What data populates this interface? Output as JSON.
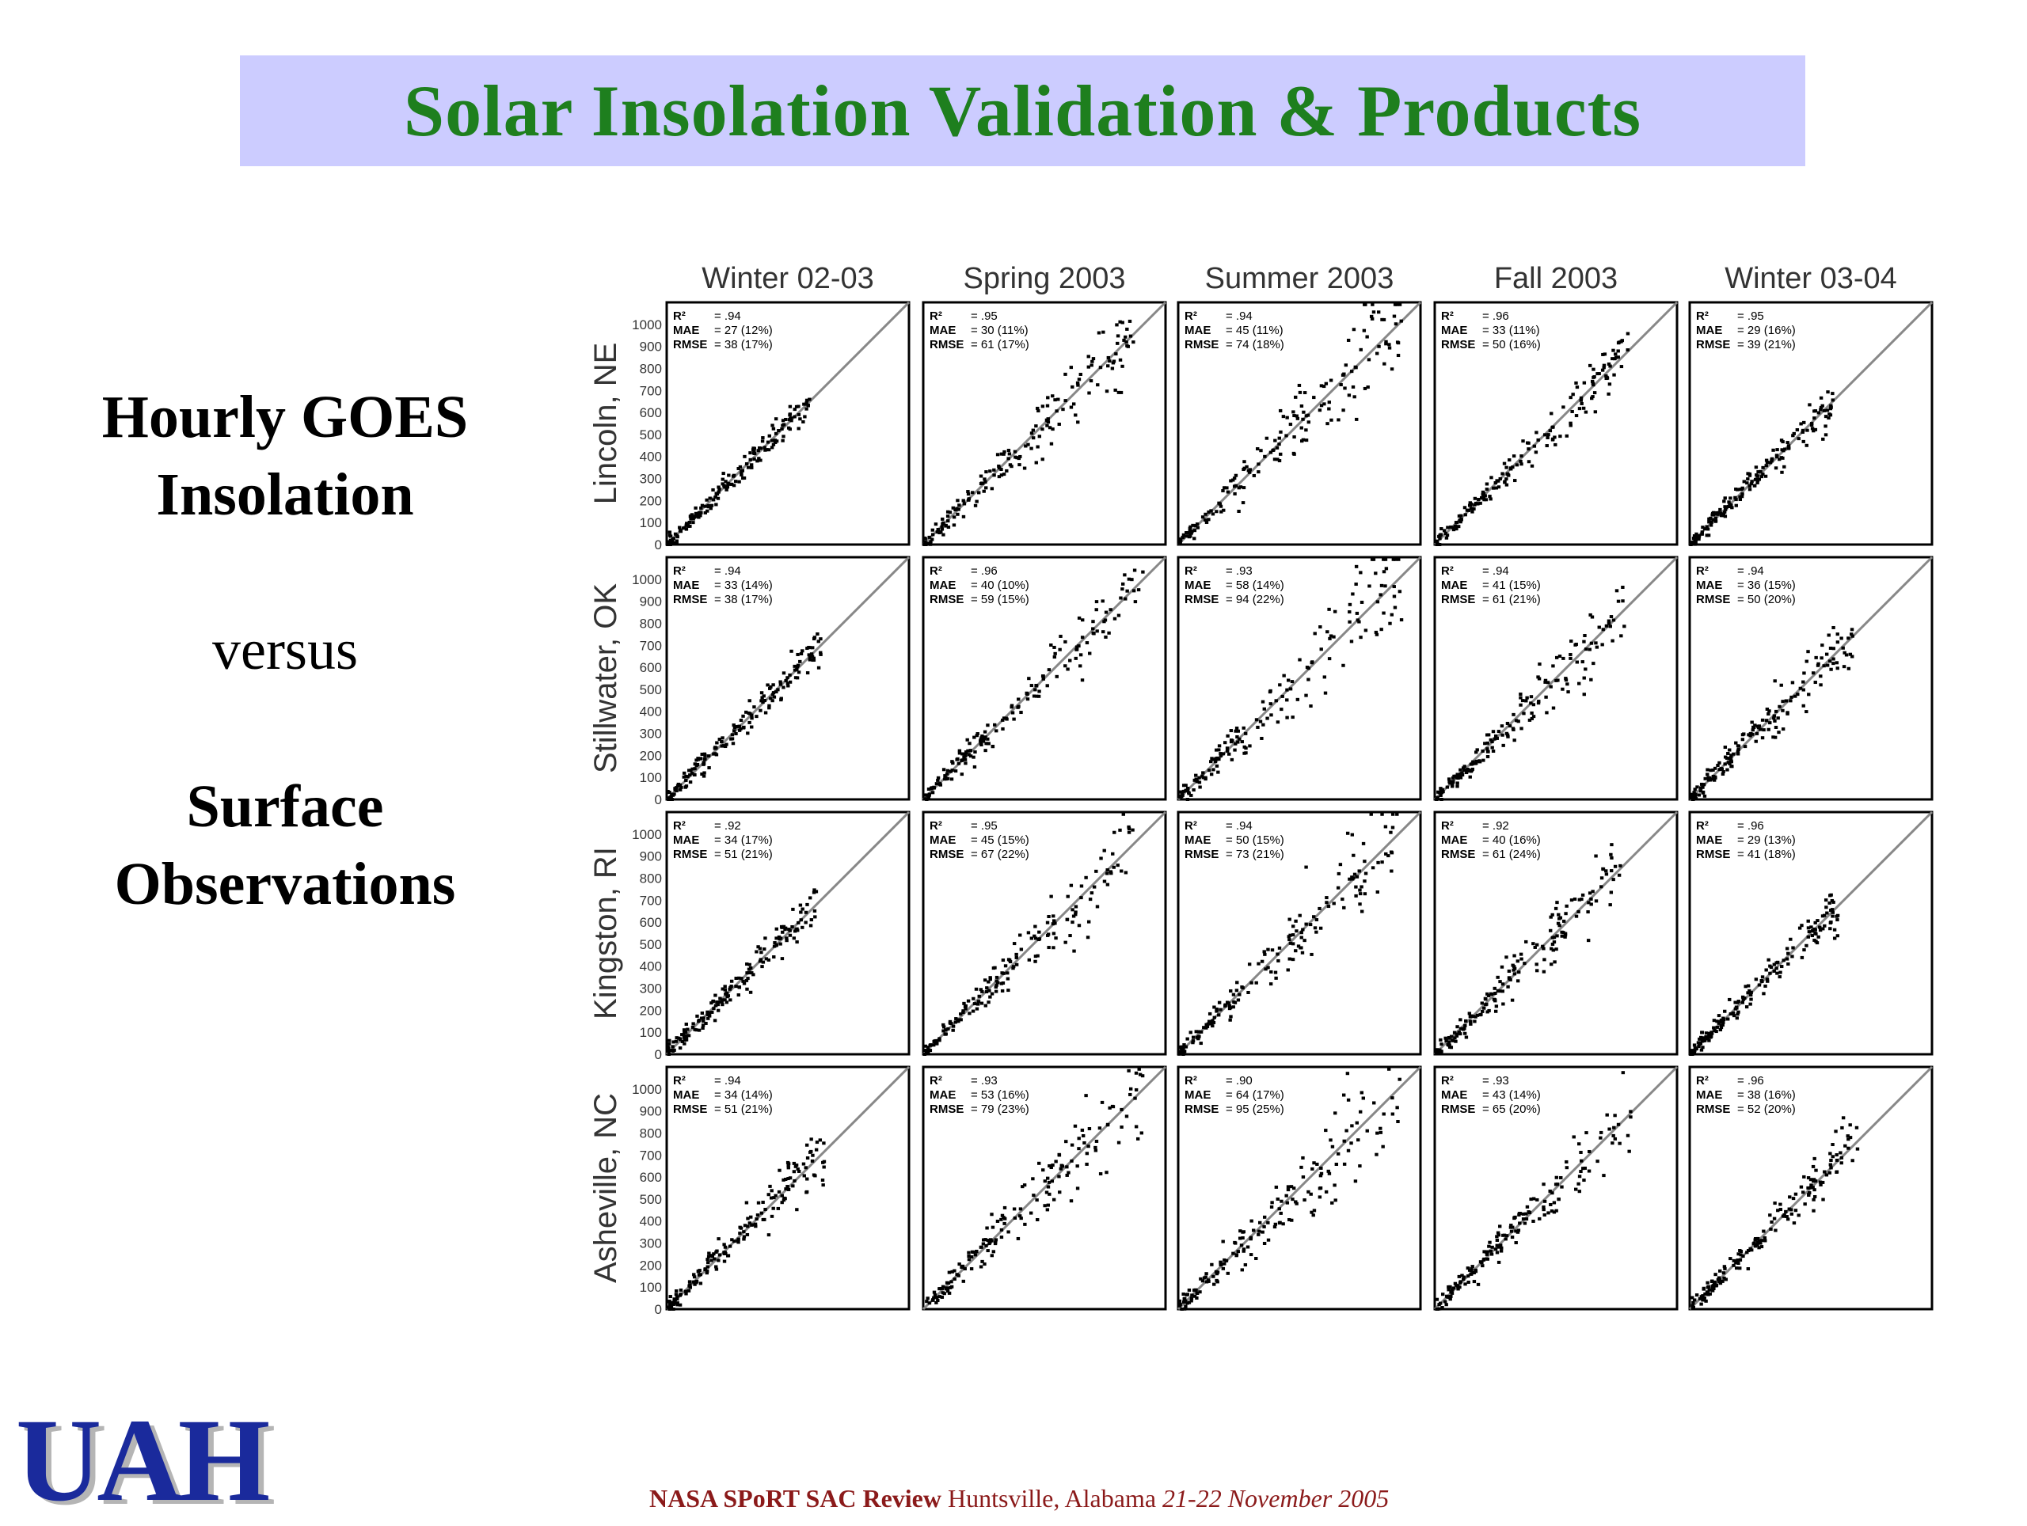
{
  "slide": {
    "title": "Solar Insolation Validation & Products",
    "left_text": {
      "line1": "Hourly GOES",
      "line2": "Insolation",
      "versus": "versus",
      "line3": "Surface",
      "line4": "Observations"
    },
    "logo": "UAH",
    "footer": {
      "part1": "NASA SPoRT SAC Review",
      "part2": " Huntsville, Alabama ",
      "part3": "21-22 November 2005"
    }
  },
  "colors": {
    "title_bg": "#ccccff",
    "title_text": "#1e7f1e",
    "footer_text": "#8b1a1a",
    "logo": "#1a2a9c"
  },
  "chart_data": {
    "type": "scatter",
    "columns": [
      "Winter 02-03",
      "Spring 2003",
      "Summer 2003",
      "Fall 2003",
      "Winter 03-04"
    ],
    "rows": [
      "Lincoln, NE",
      "Stillwater, OK",
      "Kingston, RI",
      "Asheville, NC"
    ],
    "y_ticks": [
      "1000",
      "900",
      "800",
      "700",
      "600",
      "500",
      "400",
      "300",
      "200",
      "100",
      "0"
    ],
    "xlim": [
      0,
      1100
    ],
    "ylim": [
      0,
      1100
    ],
    "reference_line": "1:1",
    "panels": [
      [
        {
          "r2": ".94",
          "mae": "27 (12%)",
          "rmse": "38 (17%)",
          "max": 650,
          "spread": 0.08
        },
        {
          "r2": ".95",
          "mae": "30 (11%)",
          "rmse": "61 (17%)",
          "max": 960,
          "spread": 0.14
        },
        {
          "r2": ".94",
          "mae": "45 (11%)",
          "rmse": "74 (18%)",
          "max": 1020,
          "spread": 0.18
        },
        {
          "r2": ".96",
          "mae": "33 (11%)",
          "rmse": "50 (16%)",
          "max": 880,
          "spread": 0.1
        },
        {
          "r2": ".95",
          "mae": "29 (16%)",
          "rmse": "39 (21%)",
          "max": 660,
          "spread": 0.1
        }
      ],
      [
        {
          "r2": ".94",
          "mae": "33 (14%)",
          "rmse": "38 (17%)",
          "max": 700,
          "spread": 0.1
        },
        {
          "r2": ".96",
          "mae": "40 (10%)",
          "rmse": "59 (15%)",
          "max": 1000,
          "spread": 0.14
        },
        {
          "r2": ".93",
          "mae": "58 (14%)",
          "rmse": "94 (22%)",
          "max": 1020,
          "spread": 0.2
        },
        {
          "r2": ".94",
          "mae": "41 (15%)",
          "rmse": "61 (21%)",
          "max": 870,
          "spread": 0.15
        },
        {
          "r2": ".94",
          "mae": "36 (15%)",
          "rmse": "50 (20%)",
          "max": 740,
          "spread": 0.15
        }
      ],
      [
        {
          "r2": ".92",
          "mae": "34 (17%)",
          "rmse": "51 (21%)",
          "max": 680,
          "spread": 0.12
        },
        {
          "r2": ".95",
          "mae": "45 (15%)",
          "rmse": "67 (22%)",
          "max": 960,
          "spread": 0.15
        },
        {
          "r2": ".94",
          "mae": "50 (15%)",
          "rmse": "73 (21%)",
          "max": 1010,
          "spread": 0.16
        },
        {
          "r2": ".92",
          "mae": "40 (16%)",
          "rmse": "61 (24%)",
          "max": 870,
          "spread": 0.18
        },
        {
          "r2": ".96",
          "mae": "29 (13%)",
          "rmse": "41 (18%)",
          "max": 680,
          "spread": 0.1
        }
      ],
      [
        {
          "r2": ".94",
          "mae": "34 (14%)",
          "rmse": "51 (21%)",
          "max": 720,
          "spread": 0.13
        },
        {
          "r2": ".93",
          "mae": "53 (16%)",
          "rmse": "79 (23%)",
          "max": 1000,
          "spread": 0.18
        },
        {
          "r2": ".90",
          "mae": "64 (17%)",
          "rmse": "95 (25%)",
          "max": 1010,
          "spread": 0.22
        },
        {
          "r2": ".93",
          "mae": "43 (14%)",
          "rmse": "65 (20%)",
          "max": 890,
          "spread": 0.15
        },
        {
          "r2": ".96",
          "mae": "38 (16%)",
          "rmse": "52 (20%)",
          "max": 770,
          "spread": 0.11
        }
      ]
    ]
  }
}
